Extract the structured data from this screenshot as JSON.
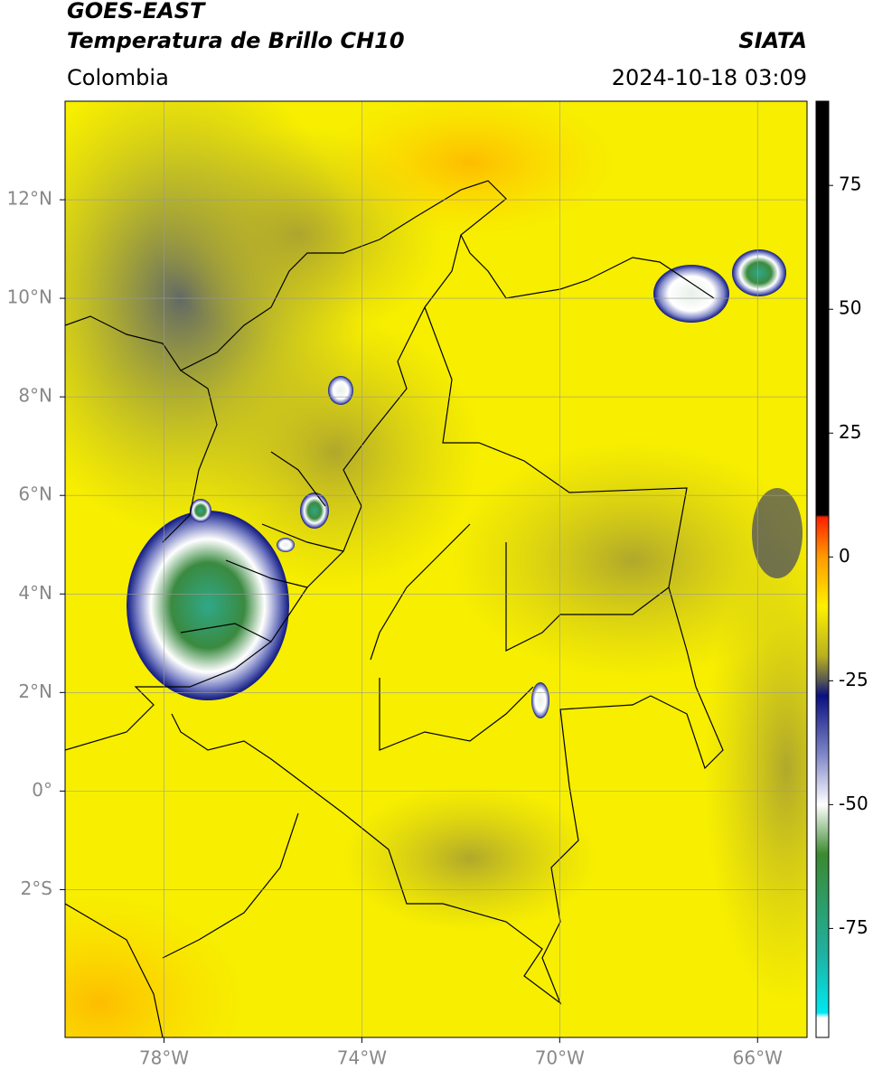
{
  "header": {
    "title": "GOES-EAST",
    "subtitle": "Temperatura de Brillo CH10",
    "source": "SIATA",
    "region": "Colombia",
    "datetime": "2024-10-18 03:09"
  },
  "map": {
    "xlim": [
      -80,
      -65
    ],
    "ylim": [
      -5,
      14
    ],
    "xticks": [
      {
        "value": -78,
        "label": "78°W"
      },
      {
        "value": -74,
        "label": "74°W"
      },
      {
        "value": -70,
        "label": "70°W"
      },
      {
        "value": -66,
        "label": "66°W"
      }
    ],
    "yticks": [
      {
        "value": 12,
        "label": "12°N"
      },
      {
        "value": 10,
        "label": "10°N"
      },
      {
        "value": 8,
        "label": "8°N"
      },
      {
        "value": 6,
        "label": "6°N"
      },
      {
        "value": 4,
        "label": "4°N"
      },
      {
        "value": 2,
        "label": "2°N"
      },
      {
        "value": 0,
        "label": "0°"
      },
      {
        "value": -2,
        "label": "2°S"
      }
    ],
    "grid": true
  },
  "colorbar": {
    "lim": [
      -97,
      92
    ],
    "ticks": [
      75,
      50,
      25,
      0,
      -25,
      -50,
      -75
    ],
    "stops": [
      {
        "value": 92,
        "color": "#000000"
      },
      {
        "value": 8.5,
        "color": "#000000"
      },
      {
        "value": 8,
        "color": "#ff2000"
      },
      {
        "value": 0,
        "color": "#ff9a00"
      },
      {
        "value": -10,
        "color": "#fff000"
      },
      {
        "value": -20,
        "color": "#b8b020"
      },
      {
        "value": -25,
        "color": "#555555"
      },
      {
        "value": -28,
        "color": "#0a1080"
      },
      {
        "value": -40,
        "color": "#8088c8"
      },
      {
        "value": -50,
        "color": "#ffffff"
      },
      {
        "value": -60,
        "color": "#3a8a30"
      },
      {
        "value": -80,
        "color": "#20b0a0"
      },
      {
        "value": -92,
        "color": "#00e8f0"
      },
      {
        "value": -93,
        "color": "#ffffff"
      },
      {
        "value": -97,
        "color": "#ffffff"
      }
    ]
  }
}
